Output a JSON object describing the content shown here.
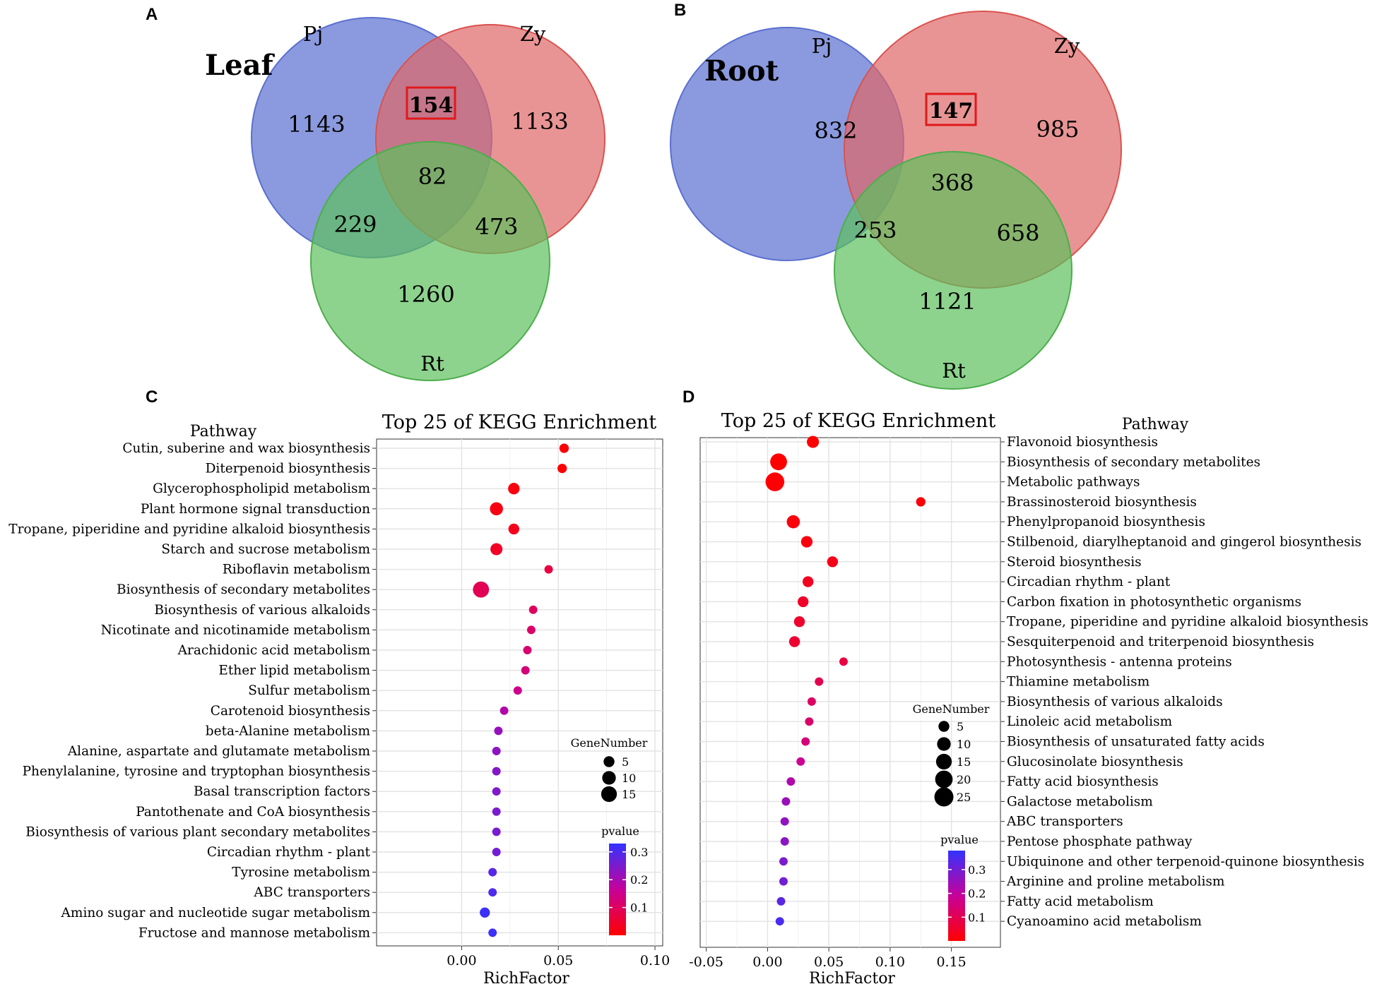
{
  "panels": {
    "a": {
      "letter": "A"
    },
    "b": {
      "letter": "B"
    },
    "c": {
      "letter": "C"
    },
    "d": {
      "letter": "D"
    }
  },
  "colors": {
    "set_pj": "#5a6fd0",
    "set_zy": "#e06666",
    "set_rt": "#5cc05c",
    "highlight_box": "#e0191b",
    "grid": "#e6e6e6",
    "pvalue_low": "#ff0000",
    "pvalue_high": "#3333ff"
  },
  "chart_data": [
    {
      "type": "venn",
      "panel": "A",
      "title": "Leaf",
      "sets": [
        "Pj",
        "Zy",
        "Rt"
      ],
      "regions": {
        "pj_only": "1143",
        "zy_only": "1133",
        "rt_only": "1260",
        "pj_zy": "154",
        "pj_rt": "229",
        "zy_rt": "473",
        "all": "82"
      },
      "highlighted_region": "pj_zy"
    },
    {
      "type": "venn",
      "panel": "B",
      "title": "Root",
      "sets": [
        "Pj",
        "Zy",
        "Rt"
      ],
      "regions": {
        "pj_only": "832",
        "zy_only": "985",
        "rt_only": "1121",
        "pj_zy": "147",
        "pj_rt": "253",
        "zy_rt": "658",
        "all": "368"
      },
      "highlighted_region": "pj_zy"
    },
    {
      "type": "scatter",
      "panel": "C",
      "title": "Top 25 of KEGG Enrichment",
      "xlabel": "RichFactor",
      "ylabel": "Pathway",
      "xlim": [
        -0.044,
        0.104
      ],
      "xticks": [
        0.0,
        0.05,
        0.1
      ],
      "xtick_labels": [
        "0.00",
        "0.05",
        "0.10"
      ],
      "axis_side": "left",
      "size_legend": {
        "title": "GeneNumber",
        "values": [
          5,
          10,
          15
        ],
        "labels": [
          "5",
          "10",
          "15"
        ]
      },
      "color_legend": {
        "title": "pvalue",
        "range": [
          0.0,
          0.33
        ],
        "ticks": [
          0.1,
          0.2,
          0.3
        ],
        "labels": [
          "0.1",
          "0.2",
          "0.3"
        ]
      },
      "points": [
        {
          "pathway": "Cutin, suberine and wax biosynthesis",
          "richfactor": 0.053,
          "genes": 3,
          "pvalue": 0.005
        },
        {
          "pathway": "Diterpenoid biosynthesis",
          "richfactor": 0.052,
          "genes": 3,
          "pvalue": 0.008
        },
        {
          "pathway": "Glycerophospholipid metabolism",
          "richfactor": 0.027,
          "genes": 6,
          "pvalue": 0.015
        },
        {
          "pathway": "Plant hormone signal transduction",
          "richfactor": 0.018,
          "genes": 9,
          "pvalue": 0.02
        },
        {
          "pathway": "Tropane, piperidine and pyridine alkaloid biosynthesis",
          "richfactor": 0.027,
          "genes": 5,
          "pvalue": 0.03
        },
        {
          "pathway": "Starch and sucrose metabolism",
          "richfactor": 0.018,
          "genes": 7,
          "pvalue": 0.04
        },
        {
          "pathway": "Riboflavin metabolism",
          "richfactor": 0.045,
          "genes": 2,
          "pvalue": 0.07
        },
        {
          "pathway": "Biosynthesis of secondary metabolites",
          "richfactor": 0.01,
          "genes": 16,
          "pvalue": 0.09
        },
        {
          "pathway": "Biosynthesis of various alkaloids",
          "richfactor": 0.037,
          "genes": 2,
          "pvalue": 0.1
        },
        {
          "pathway": "Nicotinate and nicotinamide metabolism",
          "richfactor": 0.036,
          "genes": 2,
          "pvalue": 0.11
        },
        {
          "pathway": "Arachidonic acid metabolism",
          "richfactor": 0.034,
          "genes": 2,
          "pvalue": 0.12
        },
        {
          "pathway": "Ether lipid metabolism",
          "richfactor": 0.033,
          "genes": 2,
          "pvalue": 0.13
        },
        {
          "pathway": "Sulfur metabolism",
          "richfactor": 0.029,
          "genes": 2,
          "pvalue": 0.15
        },
        {
          "pathway": "Carotenoid biosynthesis",
          "richfactor": 0.022,
          "genes": 2,
          "pvalue": 0.19
        },
        {
          "pathway": "beta-Alanine metabolism",
          "richfactor": 0.019,
          "genes": 2,
          "pvalue": 0.22
        },
        {
          "pathway": "Alanine, aspartate and glutamate metabolism",
          "richfactor": 0.018,
          "genes": 2,
          "pvalue": 0.23
        },
        {
          "pathway": "Phenylalanine, tyrosine and tryptophan biosynthesis",
          "richfactor": 0.018,
          "genes": 2,
          "pvalue": 0.24
        },
        {
          "pathway": "Basal transcription factors",
          "richfactor": 0.018,
          "genes": 2,
          "pvalue": 0.245
        },
        {
          "pathway": "Pantothenate and CoA biosynthesis",
          "richfactor": 0.018,
          "genes": 2,
          "pvalue": 0.25
        },
        {
          "pathway": "Biosynthesis of various plant secondary metabolites",
          "richfactor": 0.018,
          "genes": 2,
          "pvalue": 0.255
        },
        {
          "pathway": "Circadian rhythm - plant",
          "richfactor": 0.018,
          "genes": 2,
          "pvalue": 0.26
        },
        {
          "pathway": "Tyrosine metabolism",
          "richfactor": 0.016,
          "genes": 2,
          "pvalue": 0.29
        },
        {
          "pathway": "ABC transporters",
          "richfactor": 0.016,
          "genes": 2,
          "pvalue": 0.3
        },
        {
          "pathway": "Amino sugar and nucleotide sugar metabolism",
          "richfactor": 0.012,
          "genes": 4,
          "pvalue": 0.32
        },
        {
          "pathway": "Fructose and mannose metabolism",
          "richfactor": 0.016,
          "genes": 2,
          "pvalue": 0.32
        }
      ]
    },
    {
      "type": "scatter",
      "panel": "D",
      "title": "Top 25 of KEGG Enrichment",
      "xlabel": "RichFactor",
      "ylabel": "Pathway",
      "xlim": [
        -0.055,
        0.19
      ],
      "xticks": [
        -0.05,
        0.0,
        0.05,
        0.1,
        0.15
      ],
      "xtick_labels": [
        "-0.05",
        "0.00",
        "0.05",
        "0.10",
        "0.15"
      ],
      "axis_side": "right",
      "size_legend": {
        "title": "GeneNumber",
        "values": [
          5,
          10,
          15,
          20,
          25
        ],
        "labels": [
          "5",
          "10",
          "15",
          "20",
          "25"
        ]
      },
      "color_legend": {
        "title": "pvalue",
        "range": [
          0.0,
          0.38
        ],
        "ticks": [
          0.1,
          0.2,
          0.3
        ],
        "labels": [
          "0.1",
          "0.2",
          "0.3"
        ]
      },
      "points": [
        {
          "pathway": "Flavonoid biosynthesis",
          "richfactor": 0.037,
          "genes": 7,
          "pvalue": 0.002
        },
        {
          "pathway": "Biosynthesis of secondary metabolites",
          "richfactor": 0.009,
          "genes": 18,
          "pvalue": 0.003
        },
        {
          "pathway": "Metabolic pathways",
          "richfactor": 0.006,
          "genes": 24,
          "pvalue": 0.004
        },
        {
          "pathway": "Brassinosteroid biosynthesis",
          "richfactor": 0.125,
          "genes": 3,
          "pvalue": 0.01
        },
        {
          "pathway": "Phenylpropanoid biosynthesis",
          "richfactor": 0.021,
          "genes": 9,
          "pvalue": 0.015
        },
        {
          "pathway": "Stilbenoid, diarylheptanoid and gingerol biosynthesis",
          "richfactor": 0.032,
          "genes": 6,
          "pvalue": 0.02
        },
        {
          "pathway": "Steroid biosynthesis",
          "richfactor": 0.053,
          "genes": 5,
          "pvalue": 0.03
        },
        {
          "pathway": "Circadian rhythm - plant",
          "richfactor": 0.033,
          "genes": 5,
          "pvalue": 0.04
        },
        {
          "pathway": "Carbon fixation in photosynthetic organisms",
          "richfactor": 0.029,
          "genes": 5,
          "pvalue": 0.05
        },
        {
          "pathway": "Tropane, piperidine and pyridine alkaloid biosynthesis",
          "richfactor": 0.026,
          "genes": 5,
          "pvalue": 0.055
        },
        {
          "pathway": "Sesquiterpenoid and triterpenoid biosynthesis",
          "richfactor": 0.022,
          "genes": 5,
          "pvalue": 0.06
        },
        {
          "pathway": "Photosynthesis - antenna proteins",
          "richfactor": 0.062,
          "genes": 2,
          "pvalue": 0.08
        },
        {
          "pathway": "Thiamine metabolism",
          "richfactor": 0.042,
          "genes": 2,
          "pvalue": 0.1
        },
        {
          "pathway": "Biosynthesis of various alkaloids",
          "richfactor": 0.036,
          "genes": 2,
          "pvalue": 0.12
        },
        {
          "pathway": "Linoleic acid metabolism",
          "richfactor": 0.034,
          "genes": 2,
          "pvalue": 0.13
        },
        {
          "pathway": "Biosynthesis of unsaturated fatty acids",
          "richfactor": 0.031,
          "genes": 2,
          "pvalue": 0.15
        },
        {
          "pathway": "Glucosinolate biosynthesis",
          "richfactor": 0.027,
          "genes": 2,
          "pvalue": 0.18
        },
        {
          "pathway": "Fatty acid biosynthesis",
          "richfactor": 0.019,
          "genes": 2,
          "pvalue": 0.22
        },
        {
          "pathway": "Galactose metabolism",
          "richfactor": 0.015,
          "genes": 2,
          "pvalue": 0.25
        },
        {
          "pathway": "ABC transporters",
          "richfactor": 0.014,
          "genes": 2,
          "pvalue": 0.26
        },
        {
          "pathway": "Pentose phosphate pathway",
          "richfactor": 0.014,
          "genes": 2,
          "pvalue": 0.27
        },
        {
          "pathway": "Ubiquinone and other terpenoid-quinone biosynthesis",
          "richfactor": 0.013,
          "genes": 2,
          "pvalue": 0.29
        },
        {
          "pathway": "Arginine and proline metabolism",
          "richfactor": 0.013,
          "genes": 2,
          "pvalue": 0.3
        },
        {
          "pathway": "Fatty acid metabolism",
          "richfactor": 0.011,
          "genes": 2,
          "pvalue": 0.33
        },
        {
          "pathway": "Cyanoamino acid metabolism",
          "richfactor": 0.01,
          "genes": 2,
          "pvalue": 0.35
        }
      ]
    }
  ]
}
